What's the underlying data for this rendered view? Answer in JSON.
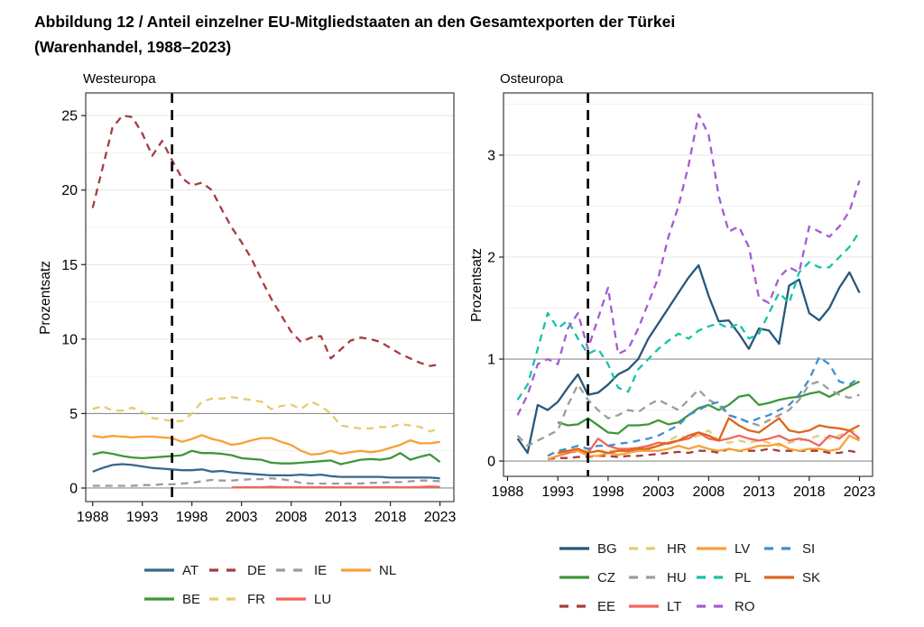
{
  "title": {
    "line1": "Abbildung 12 / Anteil einzelner EU-Mitgliedstaaten an den Gesamtexporten der Türkei",
    "line2": "(Warenhandel, 1988–2023)"
  },
  "chart_data": [
    {
      "type": "line",
      "panel_title": "Westeuropa",
      "ylabel": "Prozentsatz",
      "years": [
        1988,
        1989,
        1990,
        1991,
        1992,
        1993,
        1994,
        1995,
        1996,
        1997,
        1998,
        1999,
        2000,
        2001,
        2002,
        2003,
        2004,
        2005,
        2006,
        2007,
        2008,
        2009,
        2010,
        2011,
        2012,
        2013,
        2014,
        2015,
        2016,
        2017,
        2018,
        2019,
        2020,
        2021,
        2022,
        2023
      ],
      "xticks": [
        1988,
        1993,
        1998,
        2003,
        2008,
        2013,
        2018,
        2023
      ],
      "yticks": [
        0,
        5,
        10,
        15,
        20,
        25
      ],
      "yticks_minor": [
        2.5,
        7.5,
        12.5,
        17.5,
        22.5
      ],
      "ylim": [
        -0.91,
        26.52
      ],
      "ref_lines": [
        0,
        5
      ],
      "vline_x": 1996,
      "grid": "horizontal-only",
      "legend_position": "bottom",
      "legend_rows": [
        [
          "AT",
          "DE",
          "IE",
          "NL"
        ],
        [
          "BE",
          "FR",
          "LU"
        ]
      ],
      "series": [
        {
          "name": "AT",
          "label": "AT",
          "color": "#35698C",
          "dash": "solid",
          "values": [
            1.1,
            1.35,
            1.55,
            1.6,
            1.55,
            1.45,
            1.35,
            1.3,
            1.25,
            1.2,
            1.2,
            1.25,
            1.1,
            1.15,
            1.05,
            1.0,
            0.95,
            0.9,
            0.85,
            0.85,
            0.85,
            0.9,
            0.85,
            0.9,
            0.8,
            0.75,
            0.75,
            0.75,
            0.75,
            0.75,
            0.7,
            0.7,
            0.7,
            0.7,
            0.7,
            0.65
          ]
        },
        {
          "name": "DE",
          "label": "DE",
          "color": "#A63C40",
          "dash": "dashed",
          "values": [
            18.8,
            21.5,
            24.2,
            25.0,
            24.9,
            23.8,
            22.3,
            23.3,
            22.0,
            20.8,
            20.3,
            20.5,
            20.0,
            18.7,
            17.5,
            16.5,
            15.4,
            14.0,
            12.7,
            11.6,
            10.5,
            9.8,
            10.1,
            10.2,
            8.7,
            9.3,
            9.9,
            10.1,
            10.0,
            9.8,
            9.4,
            9.0,
            8.7,
            8.4,
            8.2,
            8.3
          ]
        },
        {
          "name": "IE",
          "label": "IE",
          "color": "#9C9C9C",
          "dash": "dashed",
          "values": [
            0.15,
            0.15,
            0.15,
            0.15,
            0.15,
            0.2,
            0.2,
            0.25,
            0.25,
            0.3,
            0.35,
            0.45,
            0.55,
            0.5,
            0.5,
            0.55,
            0.6,
            0.6,
            0.65,
            0.6,
            0.5,
            0.35,
            0.3,
            0.3,
            0.3,
            0.3,
            0.3,
            0.3,
            0.35,
            0.35,
            0.4,
            0.4,
            0.45,
            0.5,
            0.5,
            0.45
          ]
        },
        {
          "name": "NL",
          "label": "NL",
          "color": "#F7A135",
          "dash": "solid",
          "values": [
            3.5,
            3.4,
            3.5,
            3.45,
            3.4,
            3.45,
            3.45,
            3.4,
            3.35,
            3.1,
            3.3,
            3.55,
            3.3,
            3.15,
            2.9,
            3.0,
            3.2,
            3.35,
            3.35,
            3.1,
            2.9,
            2.5,
            2.25,
            2.3,
            2.5,
            2.3,
            2.4,
            2.5,
            2.4,
            2.5,
            2.7,
            2.9,
            3.2,
            3.0,
            3.0,
            3.1
          ]
        },
        {
          "name": "BE",
          "label": "BE",
          "color": "#3F9639",
          "dash": "solid",
          "values": [
            2.25,
            2.4,
            2.3,
            2.15,
            2.05,
            2.0,
            2.05,
            2.1,
            2.15,
            2.2,
            2.5,
            2.35,
            2.35,
            2.3,
            2.2,
            2.0,
            1.95,
            1.9,
            1.7,
            1.65,
            1.65,
            1.7,
            1.75,
            1.8,
            1.85,
            1.6,
            1.75,
            1.9,
            1.95,
            1.9,
            2.0,
            2.35,
            1.9,
            2.1,
            2.25,
            1.75
          ]
        },
        {
          "name": "FR",
          "label": "FR",
          "color": "#E5CC6E",
          "dash": "dashed",
          "values": [
            5.3,
            5.5,
            5.2,
            5.2,
            5.4,
            5.1,
            4.7,
            4.6,
            4.5,
            4.5,
            5.0,
            5.8,
            6.0,
            6.0,
            6.1,
            6.0,
            5.9,
            5.8,
            5.3,
            5.5,
            5.6,
            5.3,
            5.8,
            5.5,
            5.0,
            4.2,
            4.1,
            4.0,
            4.0,
            4.1,
            4.1,
            4.3,
            4.2,
            4.1,
            3.8,
            4.0
          ]
        },
        {
          "name": "LU",
          "label": "LU",
          "color": "#F2655C",
          "dash": "solid",
          "values": [
            null,
            null,
            null,
            null,
            null,
            null,
            null,
            null,
            null,
            null,
            null,
            null,
            null,
            null,
            0.04,
            0.05,
            0.05,
            0.05,
            0.09,
            0.06,
            0.05,
            0.05,
            0.06,
            0.05,
            0.05,
            0.05,
            0.05,
            0.06,
            0.05,
            0.06,
            0.06,
            0.05,
            0.06,
            0.07,
            0.1,
            0.08
          ]
        }
      ]
    },
    {
      "type": "line",
      "panel_title": "Osteuropa",
      "ylabel": "Prozentsatz",
      "years": [
        1988,
        1989,
        1990,
        1991,
        1992,
        1993,
        1994,
        1995,
        1996,
        1997,
        1998,
        1999,
        2000,
        2001,
        2002,
        2003,
        2004,
        2005,
        2006,
        2007,
        2008,
        2009,
        2010,
        2011,
        2012,
        2013,
        2014,
        2015,
        2016,
        2017,
        2018,
        2019,
        2020,
        2021,
        2022,
        2023
      ],
      "xticks": [
        1988,
        1993,
        1998,
        2003,
        2008,
        2013,
        2018,
        2023
      ],
      "yticks": [
        0,
        1,
        2,
        3
      ],
      "yticks_minor": [
        0.5,
        1.5,
        2.5,
        3.5
      ],
      "ylim": [
        -0.15,
        3.61
      ],
      "ref_lines": [
        0,
        1
      ],
      "vline_x": 1996,
      "grid": "horizontal-only",
      "legend_position": "bottom",
      "legend_rows": [
        [
          "BG",
          "HR",
          "LV",
          "SI"
        ],
        [
          "CZ",
          "HU",
          "PL",
          "SK"
        ],
        [
          "EE",
          "LT",
          "RO"
        ]
      ],
      "series": [
        {
          "name": "BG",
          "label": "BG",
          "color": "#27587A",
          "dash": "solid",
          "values": [
            null,
            0.22,
            0.08,
            0.55,
            0.5,
            0.58,
            0.72,
            0.85,
            0.65,
            0.67,
            0.75,
            0.85,
            0.9,
            1.0,
            1.2,
            1.35,
            1.5,
            1.65,
            1.8,
            1.92,
            1.62,
            1.37,
            1.38,
            1.25,
            1.1,
            1.3,
            1.28,
            1.15,
            1.72,
            1.78,
            1.45,
            1.38,
            1.5,
            1.7,
            1.85,
            1.65
          ]
        },
        {
          "name": "CZ",
          "label": "CZ",
          "color": "#3F9639",
          "dash": "solid",
          "values": [
            null,
            null,
            null,
            null,
            null,
            0.38,
            0.35,
            0.36,
            0.42,
            0.35,
            0.28,
            0.27,
            0.35,
            0.35,
            0.36,
            0.4,
            0.36,
            0.38,
            0.45,
            0.52,
            0.55,
            0.5,
            0.55,
            0.63,
            0.65,
            0.55,
            0.57,
            0.6,
            0.62,
            0.63,
            0.66,
            0.68,
            0.63,
            0.68,
            0.73,
            0.78
          ]
        },
        {
          "name": "EE",
          "label": "EE",
          "color": "#A63C40",
          "dash": "dashed",
          "values": [
            null,
            null,
            null,
            null,
            0.02,
            0.03,
            0.03,
            0.04,
            0.04,
            0.05,
            0.05,
            0.04,
            0.05,
            0.05,
            0.06,
            0.07,
            0.08,
            0.09,
            0.08,
            0.1,
            0.1,
            0.08,
            0.12,
            0.1,
            0.1,
            0.1,
            0.12,
            0.1,
            0.1,
            0.1,
            0.1,
            0.1,
            0.08,
            0.08,
            0.1,
            0.08
          ]
        },
        {
          "name": "HR",
          "label": "HR",
          "color": "#E5CC6E",
          "dash": "dashed",
          "values": [
            null,
            null,
            null,
            null,
            0.05,
            0.1,
            0.12,
            0.1,
            0.1,
            0.1,
            0.1,
            0.1,
            0.1,
            0.12,
            0.13,
            0.15,
            0.2,
            0.25,
            0.22,
            0.25,
            0.3,
            0.2,
            0.18,
            0.2,
            0.18,
            0.2,
            0.18,
            0.15,
            0.18,
            0.2,
            0.22,
            0.25,
            0.22,
            0.25,
            0.3,
            0.28
          ]
        },
        {
          "name": "HU",
          "label": "HU",
          "color": "#9C9C9C",
          "dash": "dashed",
          "values": [
            null,
            0.25,
            0.15,
            0.2,
            0.25,
            0.3,
            0.55,
            0.75,
            0.6,
            0.5,
            0.42,
            0.45,
            0.5,
            0.48,
            0.55,
            0.6,
            0.55,
            0.5,
            0.6,
            0.7,
            0.6,
            0.55,
            0.45,
            0.42,
            0.38,
            0.35,
            0.4,
            0.45,
            0.5,
            0.6,
            0.75,
            0.78,
            0.7,
            0.65,
            0.62,
            0.65
          ]
        },
        {
          "name": "LT",
          "label": "LT",
          "color": "#F2655C",
          "dash": "solid",
          "values": [
            null,
            null,
            null,
            null,
            0.02,
            0.05,
            0.08,
            0.1,
            0.08,
            0.22,
            0.15,
            0.12,
            0.12,
            0.13,
            0.15,
            0.18,
            0.17,
            0.2,
            0.22,
            0.28,
            0.22,
            0.2,
            0.22,
            0.25,
            0.22,
            0.2,
            0.22,
            0.25,
            0.2,
            0.22,
            0.2,
            0.15,
            0.25,
            0.22,
            0.3,
            0.22
          ]
        },
        {
          "name": "LV",
          "label": "LV",
          "color": "#F7A135",
          "dash": "solid",
          "values": [
            null,
            null,
            null,
            null,
            0.02,
            0.05,
            0.1,
            0.1,
            0.05,
            0.05,
            0.08,
            0.06,
            0.08,
            0.1,
            0.1,
            0.1,
            0.12,
            0.15,
            0.12,
            0.15,
            0.12,
            0.1,
            0.12,
            0.1,
            0.12,
            0.15,
            0.15,
            0.17,
            0.12,
            0.1,
            0.12,
            0.12,
            0.1,
            0.12,
            0.25,
            0.2
          ]
        },
        {
          "name": "PL",
          "label": "PL",
          "color": "#16C3A5",
          "dash": "dashed",
          "values": [
            null,
            0.6,
            0.75,
            1.1,
            1.45,
            1.3,
            1.38,
            1.2,
            1.05,
            1.1,
            0.95,
            0.72,
            0.68,
            0.9,
            1.0,
            1.1,
            1.18,
            1.25,
            1.2,
            1.28,
            1.32,
            1.35,
            1.3,
            1.35,
            1.2,
            1.25,
            1.45,
            1.65,
            1.55,
            1.85,
            1.95,
            1.9,
            1.9,
            2.0,
            2.1,
            2.25
          ]
        },
        {
          "name": "RO",
          "label": "RO",
          "color": "#A55BD4",
          "dash": "dashed",
          "values": [
            null,
            0.45,
            0.65,
            0.95,
            1.0,
            0.95,
            1.3,
            1.45,
            1.1,
            1.4,
            1.7,
            1.05,
            1.1,
            1.3,
            1.55,
            1.8,
            2.2,
            2.5,
            2.9,
            3.4,
            3.2,
            2.6,
            2.25,
            2.3,
            2.1,
            1.6,
            1.55,
            1.8,
            1.9,
            1.85,
            2.3,
            2.25,
            2.2,
            2.3,
            2.45,
            2.75
          ]
        },
        {
          "name": "SI",
          "label": "SI",
          "color": "#3E8FD0",
          "dash": "dashed",
          "values": [
            null,
            null,
            null,
            null,
            0.05,
            0.1,
            0.12,
            0.15,
            0.12,
            0.15,
            0.15,
            0.17,
            0.18,
            0.2,
            0.22,
            0.25,
            0.3,
            0.35,
            0.45,
            0.5,
            0.55,
            0.58,
            0.45,
            0.42,
            0.38,
            0.42,
            0.45,
            0.5,
            0.55,
            0.65,
            0.8,
            1.02,
            0.95,
            0.78,
            0.75,
            0.82
          ]
        },
        {
          "name": "SK",
          "label": "SK",
          "color": "#DD661C",
          "dash": "solid",
          "values": [
            null,
            null,
            null,
            null,
            null,
            0.08,
            0.1,
            0.12,
            0.08,
            0.1,
            0.08,
            0.1,
            0.1,
            0.12,
            0.12,
            0.15,
            0.18,
            0.2,
            0.25,
            0.28,
            0.25,
            0.2,
            0.42,
            0.35,
            0.3,
            0.28,
            0.35,
            0.42,
            0.3,
            0.28,
            0.3,
            0.35,
            0.33,
            0.32,
            0.3,
            0.35
          ]
        }
      ]
    }
  ]
}
